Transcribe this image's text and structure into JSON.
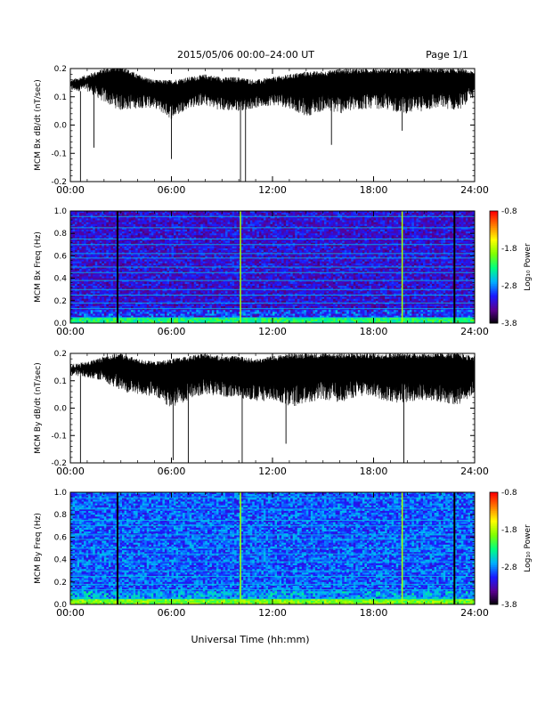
{
  "header": {
    "title": "2015/05/06  00:00–24:00 UT",
    "page": "Page 1/1"
  },
  "footer": {
    "xlabel": "Universal Time (hh:mm)"
  },
  "colors": {
    "trace": "#000000",
    "spectrogram_background": "#0b0040",
    "colorscale": [
      "#000000",
      "#5a0090",
      "#1a1aff",
      "#00b0ff",
      "#00ff80",
      "#80ff00",
      "#ffff00",
      "#ff8000",
      "#ff0000"
    ]
  },
  "chart_data": [
    {
      "type": "line",
      "panel": "bx-timeseries",
      "ylabel": "MCM Bx dB/dt (nT/sec)",
      "ylim": [
        -0.2,
        0.2
      ],
      "yticks": [
        "0.2",
        "0.1",
        "0.0",
        "-0.1",
        "-0.2"
      ],
      "xticks": [
        "00:00",
        "06:00",
        "12:00",
        "18:00",
        "24:00"
      ],
      "xlim": [
        0,
        24
      ],
      "envelope": {
        "x": [
          0,
          1,
          2,
          3,
          4,
          5,
          6,
          7,
          8,
          9,
          10,
          11,
          12,
          13,
          14,
          15,
          16,
          17,
          18,
          19,
          20,
          21,
          22,
          23,
          24
        ],
        "upper": [
          0.15,
          0.17,
          0.19,
          0.2,
          0.17,
          0.15,
          0.15,
          0.16,
          0.17,
          0.16,
          0.16,
          0.15,
          0.16,
          0.17,
          0.18,
          0.18,
          0.19,
          0.19,
          0.19,
          0.19,
          0.19,
          0.19,
          0.19,
          0.19,
          0.18
        ],
        "lower": [
          0.12,
          0.12,
          0.08,
          0.05,
          0.06,
          0.06,
          0.02,
          0.06,
          0.07,
          0.05,
          0.05,
          0.06,
          0.07,
          0.06,
          0.03,
          0.05,
          0.04,
          0.05,
          0.06,
          0.05,
          0.04,
          0.05,
          0.06,
          0.05,
          0.1
        ]
      },
      "spikes": [
        {
          "x": 0.6,
          "y": -0.2
        },
        {
          "x": 1.4,
          "y": -0.08
        },
        {
          "x": 6.0,
          "y": -0.12
        },
        {
          "x": 10.1,
          "y": -0.2
        },
        {
          "x": 10.4,
          "y": -0.2
        },
        {
          "x": 15.5,
          "y": -0.07
        },
        {
          "x": 19.7,
          "y": -0.02
        }
      ]
    },
    {
      "type": "heatmap",
      "panel": "bx-spectrogram",
      "ylabel": "MCM Bx Freq (Hz)",
      "ylim": [
        0,
        1.0
      ],
      "yticks": [
        "1.0",
        "0.8",
        "0.6",
        "0.4",
        "0.2",
        "0.0"
      ],
      "xticks": [
        "00:00",
        "06:00",
        "12:00",
        "18:00",
        "24:00"
      ],
      "xlim": [
        0,
        24
      ],
      "colorbar": {
        "label": "Log₁₀ Power",
        "ticks": [
          "-0.8",
          "-1.8",
          "-2.8",
          "-3.8"
        ],
        "range": [
          -3.8,
          -0.8
        ]
      },
      "harmonic_lines_hz": [
        0.05,
        0.13,
        0.18,
        0.25,
        0.3,
        0.38,
        0.45,
        0.5,
        0.58,
        0.62,
        0.7,
        0.75,
        0.85,
        0.95
      ],
      "vertical_lines_ut": [
        2.8,
        10.1,
        19.7,
        22.8
      ],
      "baseline_level": -3.2,
      "low_freq_level": -2.5
    },
    {
      "type": "line",
      "panel": "by-timeseries",
      "ylabel": "MCM By dB/dt (nT/sec)",
      "ylim": [
        -0.2,
        0.2
      ],
      "yticks": [
        "0.2",
        "0.1",
        "0.0",
        "-0.1",
        "-0.2"
      ],
      "xticks": [
        "00:00",
        "06:00",
        "12:00",
        "18:00",
        "24:00"
      ],
      "xlim": [
        0,
        24
      ],
      "envelope": {
        "x": [
          0,
          1,
          2,
          3,
          4,
          5,
          6,
          7,
          8,
          9,
          10,
          11,
          12,
          13,
          14,
          15,
          16,
          17,
          18,
          19,
          20,
          21,
          22,
          23,
          24
        ],
        "upper": [
          0.15,
          0.16,
          0.18,
          0.19,
          0.17,
          0.16,
          0.17,
          0.18,
          0.19,
          0.18,
          0.18,
          0.17,
          0.18,
          0.19,
          0.19,
          0.19,
          0.19,
          0.19,
          0.19,
          0.19,
          0.19,
          0.19,
          0.19,
          0.19,
          0.18
        ],
        "lower": [
          0.12,
          0.11,
          0.1,
          0.06,
          0.05,
          0.04,
          0.0,
          0.03,
          0.05,
          0.04,
          0.04,
          0.02,
          0.03,
          0.0,
          0.02,
          0.03,
          0.02,
          0.04,
          0.04,
          0.02,
          0.02,
          0.03,
          0.02,
          0.01,
          0.05
        ]
      },
      "spikes": [
        {
          "x": 0.6,
          "y": -0.2
        },
        {
          "x": 6.1,
          "y": -0.19
        },
        {
          "x": 7.0,
          "y": -0.2
        },
        {
          "x": 10.2,
          "y": -0.2
        },
        {
          "x": 12.8,
          "y": -0.13
        },
        {
          "x": 19.8,
          "y": -0.2
        }
      ]
    },
    {
      "type": "heatmap",
      "panel": "by-spectrogram",
      "ylabel": "MCM By Freq (Hz)",
      "ylim": [
        0,
        1.0
      ],
      "yticks": [
        "1.0",
        "0.8",
        "0.6",
        "0.4",
        "0.2",
        "0.0"
      ],
      "xticks": [
        "00:00",
        "06:00",
        "12:00",
        "18:00",
        "24:00"
      ],
      "xlim": [
        0,
        24
      ],
      "colorbar": {
        "label": "Log₁₀ Power",
        "ticks": [
          "-0.8",
          "-1.8",
          "-2.8",
          "-3.8"
        ],
        "range": [
          -3.8,
          -0.8
        ]
      },
      "harmonic_lines_hz": [
        0.05,
        0.13,
        0.18,
        0.25,
        0.3,
        0.38,
        0.45,
        0.5,
        0.58,
        0.62,
        0.7,
        0.75,
        0.85,
        0.95
      ],
      "vertical_lines_ut": [
        2.8,
        10.1,
        19.7,
        22.8
      ],
      "baseline_level": -2.9,
      "low_freq_level": -2.2
    }
  ]
}
